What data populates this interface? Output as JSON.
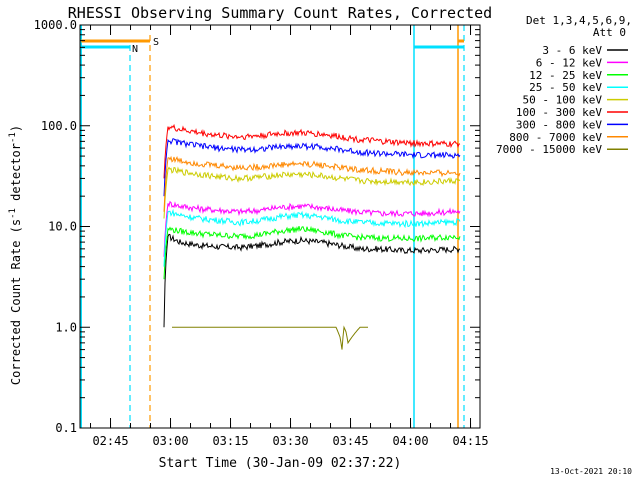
{
  "chart_data": {
    "type": "line",
    "title": "RHESSI Observing Summary Count Rates, Corrected",
    "xlabel": "Start Time (30-Jan-09 02:37:22)",
    "ylabel_main": "Corrected Count Rate (s",
    "ylabel_sup1": "-1",
    "ylabel_mid": " detector",
    "ylabel_sup2": "-1",
    "ylabel_end": ")",
    "y_scale": "log",
    "ylim": [
      0.1,
      1000
    ],
    "xlim_minutes": [
      0,
      100
    ],
    "x_ticks": [
      {
        "label": "02:45",
        "minute": 7.63
      },
      {
        "label": "03:00",
        "minute": 22.63
      },
      {
        "label": "03:15",
        "minute": 37.63
      },
      {
        "label": "03:30",
        "minute": 52.63
      },
      {
        "label": "03:45",
        "minute": 67.63
      },
      {
        "label": "04:00",
        "minute": 82.63
      },
      {
        "label": "04:15",
        "minute": 97.63
      }
    ],
    "y_ticks": [
      {
        "label": "0.1",
        "value": 0.1
      },
      {
        "label": "1.0",
        "value": 1
      },
      {
        "label": "10.0",
        "value": 10
      },
      {
        "label": "100.0",
        "value": 100
      },
      {
        "label": "1000.0",
        "value": 1000
      }
    ],
    "legend_title_1": "Det 1,3,4,5,6,9,",
    "legend_title_2": "Att 0",
    "legend_position": "right",
    "series": [
      {
        "name": "3 - 6 keV",
        "color": "#000000",
        "x": [
          21,
          22,
          25,
          30,
          35,
          40,
          45,
          50,
          55,
          60,
          65,
          70,
          75,
          80,
          85,
          90,
          95
        ],
        "y": [
          1.0,
          8.0,
          7.0,
          6.5,
          6.3,
          6.2,
          6.5,
          7.0,
          7.3,
          7.0,
          6.5,
          6.0,
          6.0,
          5.8,
          5.8,
          5.9,
          6.0
        ]
      },
      {
        "name": "6 - 12 keV",
        "color": "#ff00ff",
        "x": [
          21,
          22,
          25,
          30,
          35,
          40,
          45,
          50,
          55,
          60,
          65,
          70,
          75,
          80,
          85,
          90,
          95
        ],
        "y": [
          5.0,
          17.0,
          16.0,
          15.0,
          14.5,
          14.0,
          14.5,
          15.5,
          16.0,
          15.5,
          14.5,
          14.0,
          13.5,
          13.5,
          13.5,
          13.8,
          14.2
        ]
      },
      {
        "name": "12 - 25 keV",
        "color": "#00ff00",
        "x": [
          21,
          22,
          25,
          30,
          35,
          40,
          45,
          50,
          55,
          60,
          65,
          70,
          75,
          80,
          85,
          90,
          95
        ],
        "y": [
          3.0,
          9.5,
          9.0,
          8.5,
          8.2,
          8.0,
          8.3,
          9.0,
          9.5,
          9.0,
          8.2,
          7.8,
          7.7,
          7.6,
          7.6,
          7.8,
          8.0
        ]
      },
      {
        "name": "25 - 50 keV",
        "color": "#00ffff",
        "x": [
          21,
          22,
          25,
          30,
          35,
          40,
          45,
          50,
          55,
          60,
          65,
          70,
          75,
          80,
          85,
          90,
          95
        ],
        "y": [
          4.0,
          14.0,
          13.0,
          12.0,
          11.5,
          11.0,
          11.5,
          12.5,
          13.0,
          12.5,
          11.5,
          11.0,
          10.8,
          10.7,
          10.7,
          10.9,
          11.2
        ]
      },
      {
        "name": "50 - 100 keV",
        "color": "#cccc00",
        "x": [
          21,
          22,
          25,
          30,
          35,
          40,
          45,
          50,
          55,
          60,
          65,
          70,
          75,
          80,
          85,
          90,
          95
        ],
        "y": [
          12.0,
          37.0,
          35.0,
          33.0,
          31.0,
          30.0,
          31.0,
          32.5,
          33.0,
          32.0,
          30.0,
          28.5,
          28.0,
          28.0,
          27.5,
          28.0,
          28.5
        ]
      },
      {
        "name": "100 - 300 keV",
        "color": "#ff0000",
        "x": [
          21,
          22,
          25,
          30,
          35,
          40,
          45,
          50,
          55,
          60,
          65,
          70,
          75,
          80,
          85,
          90,
          95
        ],
        "y": [
          30.0,
          98.0,
          92.0,
          85.0,
          80.0,
          78.0,
          80.0,
          84.0,
          85.0,
          83.0,
          78.0,
          73.0,
          70.0,
          68.0,
          67.0,
          66.0,
          66.0
        ]
      },
      {
        "name": "300 - 800 keV",
        "color": "#0000ff",
        "x": [
          21,
          22,
          25,
          30,
          35,
          40,
          45,
          50,
          55,
          60,
          65,
          70,
          75,
          80,
          85,
          90,
          95
        ],
        "y": [
          20.0,
          72.0,
          68.0,
          63.0,
          60.0,
          58.0,
          59.0,
          62.0,
          63.0,
          62.0,
          58.0,
          55.0,
          53.0,
          52.0,
          51.0,
          51.0,
          51.0
        ]
      },
      {
        "name": "800 - 7000 keV",
        "color": "#ff8800",
        "x": [
          21,
          22,
          25,
          30,
          35,
          40,
          45,
          50,
          55,
          60,
          65,
          70,
          75,
          80,
          85,
          90,
          95
        ],
        "y": [
          14.0,
          48.0,
          45.0,
          42.0,
          40.0,
          38.5,
          39.0,
          41.0,
          42.0,
          41.0,
          38.5,
          36.5,
          35.5,
          34.5,
          34.0,
          34.0,
          34.0
        ]
      },
      {
        "name": "7000 - 15000 keV",
        "color": "#808000",
        "x": [
          23,
          38,
          45,
          50,
          55,
          60,
          64,
          65,
          65.5,
          66,
          66.5,
          67,
          70,
          72
        ],
        "y": [
          1.0,
          1.0,
          1.0,
          1.0,
          1.0,
          1.0,
          1.0,
          0.8,
          0.6,
          1.0,
          0.9,
          0.7,
          1.0,
          1.0
        ]
      }
    ],
    "flags": [
      {
        "label": "N",
        "color": "#00e0ff"
      },
      {
        "label": "S",
        "color": "#ff9900"
      }
    ],
    "footer_date": "13-Oct-2021 20:10"
  }
}
